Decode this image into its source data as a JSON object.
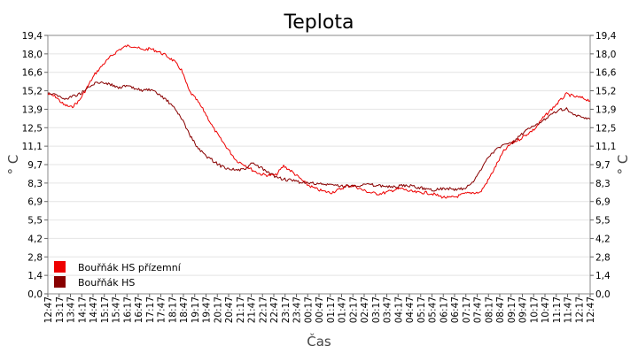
{
  "chart_data": {
    "type": "line",
    "title": "Teplota",
    "xlabel": "Čas",
    "ylabel": "° C",
    "ylim": [
      0,
      19.4
    ],
    "y_ticks": [
      "0,0",
      "1,4",
      "2,8",
      "4,2",
      "5,5",
      "6,9",
      "8,3",
      "9,7",
      "11,1",
      "12,5",
      "13,9",
      "15,2",
      "16,6",
      "18,0",
      "19,4"
    ],
    "x_ticks": [
      "12:47",
      "13:17",
      "13:47",
      "14:17",
      "14:47",
      "15:17",
      "15:47",
      "16:17",
      "16:47",
      "17:17",
      "17:47",
      "18:17",
      "18:47",
      "19:17",
      "19:47",
      "20:17",
      "20:47",
      "21:17",
      "21:47",
      "22:17",
      "22:47",
      "23:17",
      "23:47",
      "00:17",
      "00:47",
      "01:17",
      "01:47",
      "02:17",
      "02:47",
      "03:17",
      "03:47",
      "04:17",
      "04:47",
      "05:17",
      "05:47",
      "06:17",
      "06:47",
      "07:17",
      "07:47",
      "08:17",
      "08:47",
      "09:17",
      "09:47",
      "10:17",
      "10:47",
      "11:17",
      "11:47",
      "12:17",
      "12:47"
    ],
    "grid": true,
    "legend_position": "bottom-left",
    "series": [
      {
        "name": "Bouřňák HS přízemní",
        "color": "#ee0000",
        "values": [
          15.0,
          14.8,
          14.2,
          14.0,
          14.5,
          15.5,
          16.5,
          17.2,
          17.8,
          18.3,
          18.6,
          18.6,
          18.3,
          18.4,
          18.2,
          17.9,
          17.5,
          16.8,
          15.2,
          14.5,
          13.6,
          12.5,
          11.6,
          10.8,
          10.0,
          9.7,
          9.3,
          9.0,
          8.9,
          8.9,
          9.6,
          9.2,
          8.7,
          8.2,
          7.9,
          7.7,
          7.6,
          7.8,
          8.1,
          8.1,
          7.8,
          7.6,
          7.5,
          7.6,
          7.8,
          7.9,
          7.7,
          7.6,
          7.6,
          7.5,
          7.3,
          7.2,
          7.3,
          7.5,
          7.6,
          7.6,
          8.5,
          9.6,
          10.7,
          11.3,
          11.6,
          12.0,
          12.4,
          13.2,
          13.8,
          14.4,
          15.0,
          14.8,
          14.7,
          14.5
        ]
      },
      {
        "name": "Bouřňák HS",
        "color": "#880000",
        "values": [
          15.1,
          15.0,
          14.6,
          14.8,
          15.0,
          15.4,
          15.8,
          15.9,
          15.7,
          15.5,
          15.6,
          15.4,
          15.3,
          15.3,
          15.0,
          14.6,
          14.0,
          13.2,
          12.0,
          11.0,
          10.4,
          10.0,
          9.6,
          9.4,
          9.3,
          9.3,
          9.8,
          9.5,
          9.1,
          8.8,
          8.6,
          8.5,
          8.4,
          8.3,
          8.3,
          8.2,
          8.2,
          8.1,
          8.1,
          8.1,
          8.2,
          8.2,
          8.1,
          8.1,
          8.0,
          8.1,
          8.1,
          8.0,
          7.9,
          7.8,
          7.9,
          7.9,
          7.8,
          7.9,
          8.3,
          9.2,
          10.3,
          10.8,
          11.2,
          11.3,
          11.8,
          12.3,
          12.6,
          13.0,
          13.5,
          13.8,
          13.9,
          13.4,
          13.2,
          13.1
        ]
      }
    ]
  }
}
